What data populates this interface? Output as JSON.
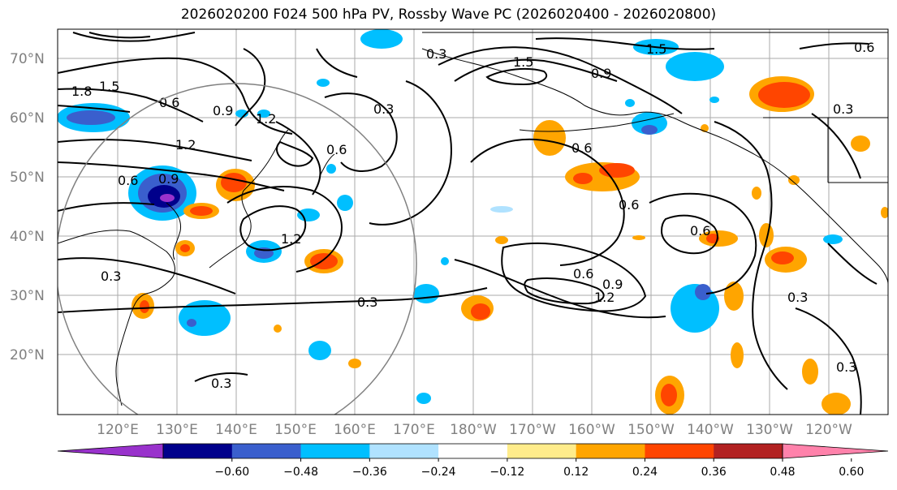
{
  "title": "2026020200 F024 500 hPa PV, Rossby Wave PC (2026020400 - 2026020800)",
  "latitude_labels": [
    "70°N",
    "60°N",
    "50°N",
    "40°N",
    "30°N",
    "20°N"
  ],
  "longitude_labels": [
    "120°E",
    "130°E",
    "140°E",
    "150°E",
    "160°E",
    "170°E",
    "180°W",
    "170°W",
    "160°W",
    "150°W",
    "140°W",
    "130°W",
    "120°W"
  ],
  "contour_labels": [
    "1.8",
    "1.5",
    "0.6",
    "1.2",
    "0.9",
    "0.6",
    "0.9",
    "1.2",
    "0.6",
    "0.3",
    "1.5",
    "0.9",
    "1.5",
    "0.6",
    "0.3",
    "0.6",
    "0.6",
    "0.6",
    "1.2",
    "0.3",
    "0.6",
    "0.9",
    "1.2",
    "0.3",
    "0.3",
    "0.3",
    "0.3",
    "0.3"
  ],
  "colorbar": {
    "ticks": [
      "−0.60",
      "−0.48",
      "−0.36",
      "−0.24",
      "−0.12",
      "0.12",
      "0.24",
      "0.36",
      "0.48",
      "0.60"
    ],
    "colors": [
      "#9932CC",
      "#00008B",
      "#3A5FCD",
      "#00BFFF",
      "#B0E2FF",
      "#FFFFFF",
      "#FFEC8B",
      "#FFA500",
      "#FF4500",
      "#B22222",
      "#FF82AB"
    ]
  },
  "colors": {
    "ocean": "#ffffff",
    "grid": "#aaaaaa",
    "contour": "#000000",
    "circle": "#808080"
  }
}
